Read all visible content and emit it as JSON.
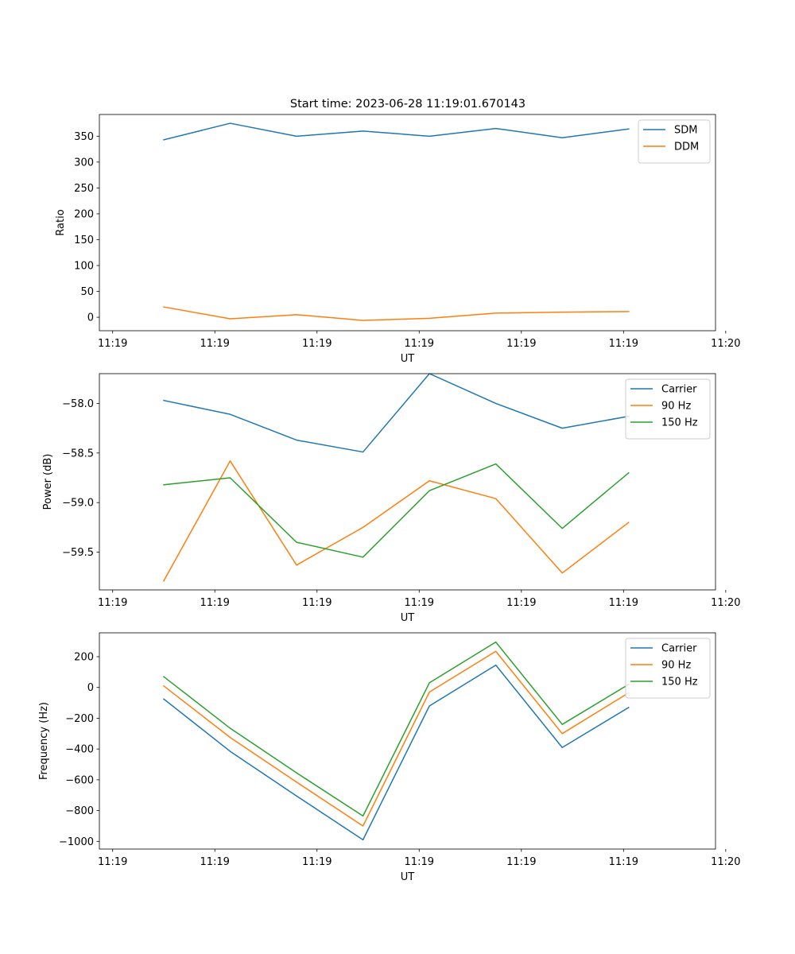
{
  "figure": {
    "title": "Start time: 2023-06-28 11:19:01.670143"
  },
  "chart_data": [
    {
      "type": "line",
      "xlabel": "UT",
      "ylabel": "Ratio",
      "x_tick_labels": [
        "11:19",
        "11:19",
        "11:19",
        "11:19",
        "11:19",
        "11:19",
        "11:20"
      ],
      "y_ticks": [
        0,
        50,
        100,
        150,
        200,
        250,
        300,
        350
      ],
      "xlim": [
        -0.13,
        5.9
      ],
      "ylim": [
        -26,
        392
      ],
      "grid": false,
      "legend": "top-right",
      "x": [
        0.5,
        1.15,
        1.8,
        2.45,
        3.1,
        3.75,
        4.4,
        5.05
      ],
      "series": [
        {
          "name": "SDM",
          "color": "#1f77b4",
          "values": [
            343,
            375,
            350,
            360,
            350,
            365,
            347,
            364
          ]
        },
        {
          "name": "DDM",
          "color": "#ff7f0e",
          "values": [
            20,
            -3,
            5,
            -6,
            -2,
            8,
            10,
            11
          ]
        }
      ]
    },
    {
      "type": "line",
      "xlabel": "UT",
      "ylabel": "Power (dB)",
      "x_tick_labels": [
        "11:19",
        "11:19",
        "11:19",
        "11:19",
        "11:19",
        "11:19",
        "11:20"
      ],
      "y_ticks": [
        -59.5,
        -59.0,
        -58.5,
        -58.0
      ],
      "y_tick_labels": [
        "−59.5",
        "−59.0",
        "−58.5",
        "−58.0"
      ],
      "xlim": [
        -0.13,
        5.9
      ],
      "ylim": [
        -59.88,
        -57.7
      ],
      "grid": false,
      "legend": "top-right",
      "x": [
        0.5,
        1.15,
        1.8,
        2.45,
        3.1,
        3.75,
        4.4,
        5.05
      ],
      "series": [
        {
          "name": "Carrier",
          "color": "#1f77b4",
          "values": [
            -57.97,
            -58.11,
            -58.37,
            -58.49,
            -57.7,
            -58.0,
            -58.25,
            -58.13
          ]
        },
        {
          "name": "90 Hz",
          "color": "#ff7f0e",
          "values": [
            -59.79,
            -58.58,
            -59.63,
            -59.25,
            -58.78,
            -58.96,
            -59.71,
            -59.2
          ]
        },
        {
          "name": "150 Hz",
          "color": "#2ca02c",
          "values": [
            -58.82,
            -58.75,
            -59.4,
            -59.55,
            -58.88,
            -58.61,
            -59.26,
            -58.7
          ]
        }
      ]
    },
    {
      "type": "line",
      "xlabel": "UT",
      "ylabel": "Frequency (Hz)",
      "x_tick_labels": [
        "11:19",
        "11:19",
        "11:19",
        "11:19",
        "11:19",
        "11:19",
        "11:20"
      ],
      "y_ticks": [
        -1000,
        -800,
        -600,
        -400,
        -200,
        0,
        200
      ],
      "y_tick_labels": [
        "−1000",
        "−800",
        "−600",
        "−400",
        "−200",
        "0",
        "200"
      ],
      "xlim": [
        -0.13,
        5.9
      ],
      "ylim": [
        -1050,
        355
      ],
      "grid": false,
      "legend": "top-right",
      "x": [
        0.5,
        1.15,
        1.8,
        2.45,
        3.1,
        3.75,
        4.4,
        5.05
      ],
      "series": [
        {
          "name": "Carrier",
          "color": "#1f77b4",
          "values": [
            -75,
            -415,
            -705,
            -990,
            -120,
            145,
            -390,
            -130
          ]
        },
        {
          "name": "90 Hz",
          "color": "#ff7f0e",
          "values": [
            10,
            -325,
            -615,
            -900,
            -30,
            235,
            -300,
            -35
          ]
        },
        {
          "name": "150 Hz",
          "color": "#2ca02c",
          "values": [
            70,
            -265,
            -555,
            -835,
            30,
            295,
            -240,
            20
          ]
        }
      ]
    }
  ]
}
